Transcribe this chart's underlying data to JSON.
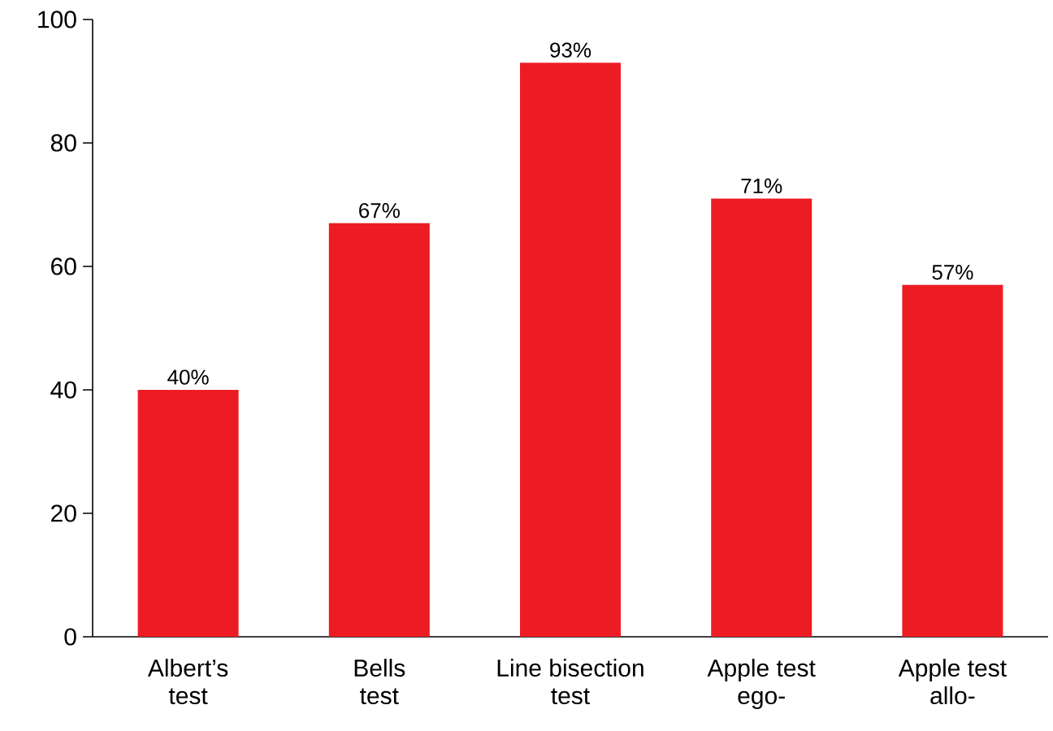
{
  "chart_data": {
    "type": "bar",
    "categories": [
      "Albert’s test",
      "Bells test",
      "Line bisection test",
      "Apple test ego-",
      "Apple test allo-"
    ],
    "values": [
      40,
      67,
      93,
      71,
      57
    ],
    "value_labels": [
      "40%",
      "67%",
      "93%",
      "71%",
      "57%"
    ],
    "color": "#ed1c24",
    "ylim": [
      0,
      100
    ],
    "yticks": [
      0,
      20,
      40,
      60,
      80,
      100
    ],
    "grid": false
  }
}
